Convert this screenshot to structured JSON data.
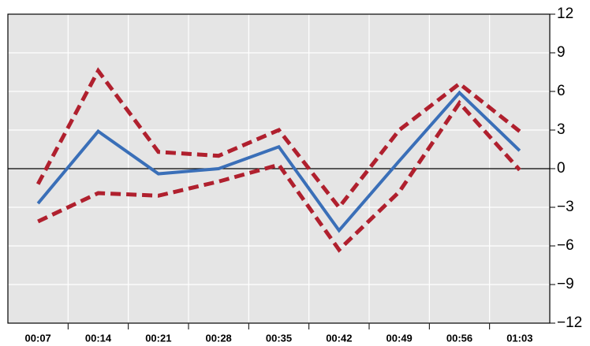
{
  "chart_data": {
    "type": "line",
    "categories": [
      "00:07",
      "00:14",
      "00:21",
      "00:28",
      "00:35",
      "00:42",
      "00:49",
      "00:56",
      "01:03"
    ],
    "series": [
      {
        "color": "#b0202e",
        "style": "dashed",
        "values": [
          -1.2,
          7.6,
          1.3,
          1.0,
          3.0,
          -3.0,
          3.0,
          6.6,
          2.9
        ]
      },
      {
        "color": "#b0202e",
        "style": "dashed",
        "values": [
          -4.1,
          -1.9,
          -2.1,
          -1.0,
          0.3,
          -6.3,
          -1.8,
          5.1,
          -0.1
        ]
      },
      {
        "color": "#3a6fb8",
        "style": "solid",
        "values": [
          -2.7,
          2.9,
          -0.4,
          0.0,
          1.7,
          -4.8,
          0.6,
          5.9,
          1.4
        ]
      }
    ],
    "ylim": [
      -12,
      12
    ],
    "yticks": [
      {
        "value": -12,
        "label": "−12"
      },
      {
        "value": -9,
        "label": "−9"
      },
      {
        "value": -6,
        "label": "−6"
      },
      {
        "value": -3,
        "label": "−3"
      },
      0,
      3,
      6,
      9,
      12
    ],
    "y_axis_side": "right",
    "grid": true
  }
}
